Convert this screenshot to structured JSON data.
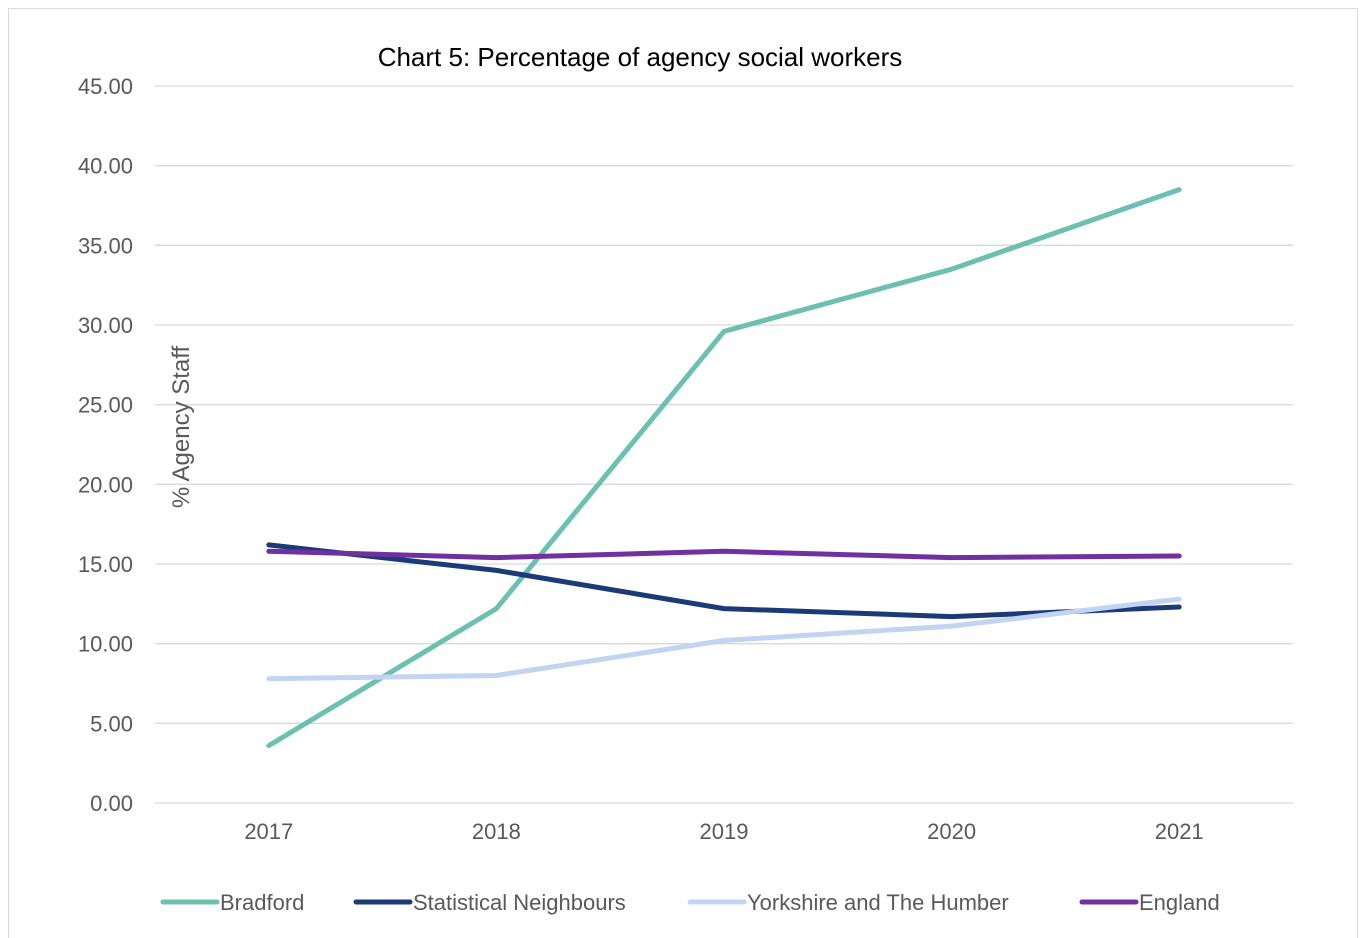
{
  "chart_data": {
    "type": "line",
    "title": "Chart 5: Percentage of agency social workers",
    "ylabel": "% Agency Staff",
    "xlabel": "",
    "categories": [
      "2017",
      "2018",
      "2019",
      "2020",
      "2021"
    ],
    "ylim": [
      0,
      45
    ],
    "yticks": [
      "0.00",
      "5.00",
      "10.00",
      "15.00",
      "20.00",
      "25.00",
      "30.00",
      "35.00",
      "40.00",
      "45.00"
    ],
    "grid": true,
    "legend_position": "bottom",
    "series": [
      {
        "name": "Bradford",
        "color": "#6cc0b0",
        "values": [
          3.6,
          12.2,
          29.6,
          33.5,
          38.5
        ]
      },
      {
        "name": "Statistical Neighbours",
        "color": "#1c3a78",
        "values": [
          16.2,
          14.6,
          12.2,
          11.7,
          12.3
        ]
      },
      {
        "name": "Yorkshire and The Humber",
        "color": "#c3d4f2",
        "values": [
          7.8,
          8.0,
          10.2,
          11.1,
          12.8
        ]
      },
      {
        "name": "England",
        "color": "#7030a0",
        "values": [
          15.8,
          15.4,
          15.8,
          15.4,
          15.5
        ]
      }
    ]
  }
}
